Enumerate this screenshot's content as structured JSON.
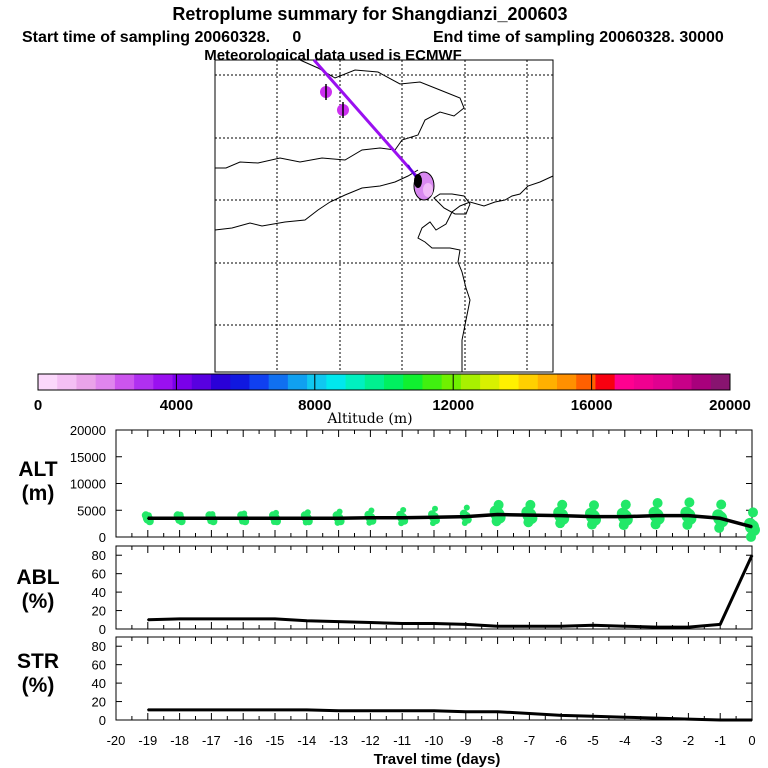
{
  "header": {
    "title": "Retroplume summary for Shangdianzi_200603",
    "subtitle_start": "Start time of sampling 20060328.     0",
    "subtitle_end": "End time of sampling 20060328. 30000",
    "met_line": "Meteorological data used is ECMWF"
  },
  "colorbar": {
    "label": "Altitude (m)",
    "tick_labels": [
      "0",
      "4000",
      "8000",
      "12000",
      "16000",
      "20000"
    ],
    "colors": [
      "#fbd8fb",
      "#f4bff4",
      "#eaa3ea",
      "#df85ee",
      "#cc55ee",
      "#b030f0",
      "#9a10f0",
      "#7a00ea",
      "#5800e0",
      "#2a00d8",
      "#1018e0",
      "#1040f0",
      "#1070f0",
      "#10a0f0",
      "#10c8f0",
      "#00e8ee",
      "#00f0c0",
      "#00f090",
      "#00f060",
      "#10f030",
      "#40f010",
      "#70f000",
      "#a8f000",
      "#d8f000",
      "#fff000",
      "#ffd000",
      "#ffb000",
      "#ff9000",
      "#ff6000",
      "#f80010",
      "#ff0090",
      "#f00090",
      "#e00090",
      "#c80088",
      "#a8007c",
      "#881470"
    ]
  },
  "map": {
    "plume_color": "#9a10f0",
    "point_color": "#cc30f0"
  },
  "chart_data": [
    {
      "type": "line",
      "panel": "ALT",
      "ylabel": "ALT (m)",
      "ylim": [
        0,
        20000
      ],
      "yticks": [
        "0",
        "5000",
        "10000",
        "15000",
        "20000"
      ],
      "x": [
        -19,
        -18,
        -17,
        -16,
        -15,
        -14,
        -13,
        -12,
        -11,
        -10,
        -9,
        -8,
        -7,
        -6,
        -5,
        -4,
        -3,
        -2,
        -1,
        0
      ],
      "values": [
        3500,
        3500,
        3500,
        3500,
        3500,
        3500,
        3500,
        3600,
        3600,
        3700,
        3800,
        4200,
        4100,
        4000,
        3800,
        3800,
        4000,
        4000,
        3500,
        1900
      ],
      "cloud_color": "#22e868"
    },
    {
      "type": "line",
      "panel": "ABL",
      "ylabel": "ABL (%)",
      "ylim": [
        0,
        90
      ],
      "yticks": [
        "0",
        "20",
        "40",
        "60",
        "80"
      ],
      "x": [
        -19,
        -18,
        -17,
        -16,
        -15,
        -14,
        -13,
        -12,
        -11,
        -10,
        -9,
        -8,
        -7,
        -6,
        -5,
        -4,
        -3,
        -2,
        -1,
        0
      ],
      "values": [
        10,
        11,
        11,
        11,
        11,
        9,
        8,
        7,
        6,
        6,
        5,
        3,
        3,
        3,
        4,
        3,
        2,
        2,
        5,
        80
      ]
    },
    {
      "type": "line",
      "panel": "STR",
      "ylabel": "STR (%)",
      "ylim": [
        0,
        90
      ],
      "yticks": [
        "0",
        "20",
        "40",
        "60",
        "80"
      ],
      "x": [
        -19,
        -18,
        -17,
        -16,
        -15,
        -14,
        -13,
        -12,
        -11,
        -10,
        -9,
        -8,
        -7,
        -6,
        -5,
        -4,
        -3,
        -2,
        -1,
        0
      ],
      "values": [
        11,
        11,
        11,
        11,
        11,
        11,
        10,
        10,
        10,
        10,
        9,
        9,
        7,
        5,
        4,
        3,
        2,
        1,
        0,
        0
      ]
    }
  ],
  "xaxis": {
    "label": "Travel time (days)",
    "tick_labels": [
      "-20",
      "-19",
      "-18",
      "-17",
      "-16",
      "-15",
      "-14",
      "-13",
      "-12",
      "-11",
      "-10",
      "-9",
      "-8",
      "-7",
      "-6",
      "-5",
      "-4",
      "-3",
      "-2",
      "-1",
      "0"
    ]
  }
}
